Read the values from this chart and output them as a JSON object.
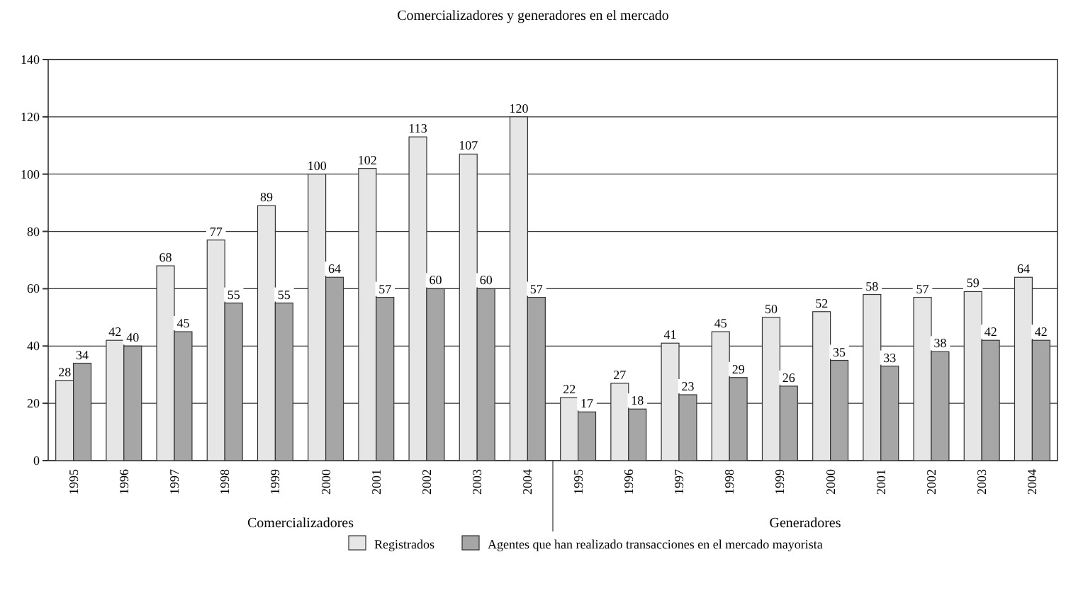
{
  "chart_data": {
    "type": "bar",
    "title": "Comercializadores y generadores en el mercado",
    "categories": [
      "1995",
      "1996",
      "1997",
      "1998",
      "1999",
      "2000",
      "2001",
      "2002",
      "2003",
      "2004",
      "1995",
      "1996",
      "1997",
      "1998",
      "1999",
      "2000",
      "2001",
      "2002",
      "2003",
      "2004"
    ],
    "series": [
      {
        "name": "Registrados",
        "color": "#e6e6e6",
        "values": [
          28,
          42,
          68,
          77,
          89,
          100,
          102,
          113,
          107,
          120,
          22,
          27,
          41,
          45,
          50,
          52,
          58,
          57,
          59,
          64
        ]
      },
      {
        "name": "Agentes que han realizado transacciones en el mercado mayorista",
        "color": "#a6a6a6",
        "values": [
          34,
          40,
          45,
          55,
          55,
          64,
          57,
          60,
          60,
          57,
          17,
          18,
          23,
          29,
          26,
          35,
          33,
          38,
          42,
          42
        ]
      }
    ],
    "ylim": [
      0,
      140
    ],
    "yticks": [
      0,
      20,
      40,
      60,
      80,
      100,
      120,
      140
    ],
    "grid": "y",
    "legend": "bottom",
    "data_labels": true,
    "annotations": [
      "Comercializadores",
      "Generadores"
    ]
  }
}
